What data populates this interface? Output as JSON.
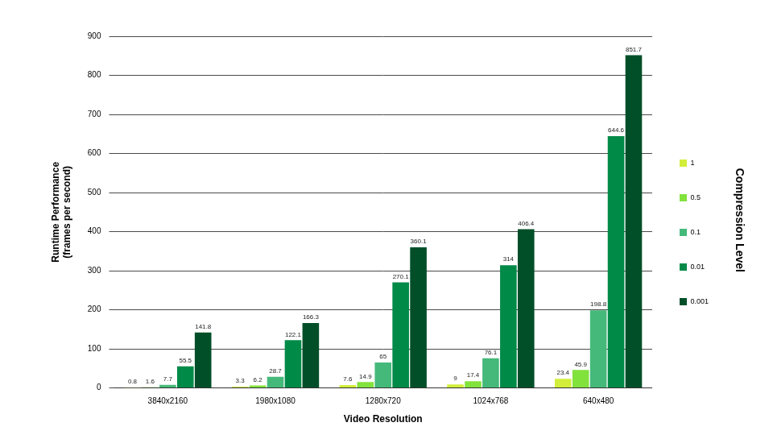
{
  "chart_data": {
    "type": "bar",
    "x_label": "Video Resolution",
    "y_label": [
      "Runtime Performance",
      "(frames per second)"
    ],
    "legend_title": "Compression Level",
    "categories": [
      "3840x2160",
      "1980x1080",
      "1280x720",
      "1024x768",
      "640x480"
    ],
    "series": [
      {
        "name": "1",
        "color": "#d2ee3a",
        "values": [
          0.8,
          3.3,
          7.6,
          9,
          23.4
        ]
      },
      {
        "name": "0.5",
        "color": "#82e23c",
        "values": [
          1.6,
          6.2,
          14.9,
          17.4,
          45.9
        ]
      },
      {
        "name": "0.1",
        "color": "#45b97a",
        "values": [
          7.7,
          28.7,
          65,
          76.1,
          198.8
        ]
      },
      {
        "name": "0.01",
        "color": "#008a48",
        "values": [
          55.5,
          122.1,
          270.1,
          314,
          644.6
        ]
      },
      {
        "name": "0.001",
        "color": "#004f28",
        "values": [
          141.8,
          166.3,
          360.1,
          406.4,
          851.7
        ]
      }
    ],
    "ylim": [
      0,
      900
    ],
    "yticks": [
      0,
      100,
      200,
      300,
      400,
      500,
      600,
      700,
      800,
      900
    ],
    "grid": true,
    "legend": "right",
    "data_labels": true
  }
}
